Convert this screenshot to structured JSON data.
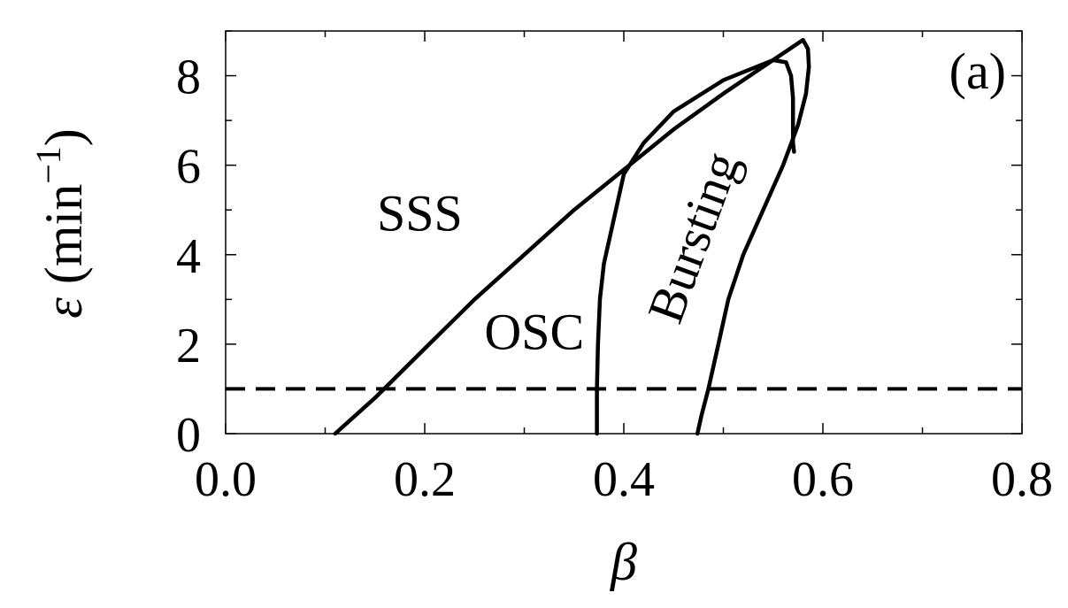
{
  "chart_data": {
    "type": "line",
    "xlabel": "β",
    "ylabel": {
      "symbol": "ε",
      "open": " (min",
      "exp": "−1",
      "close": ")"
    },
    "panel_label": "(a)",
    "xlim": [
      0.0,
      0.8
    ],
    "ylim": [
      0,
      9
    ],
    "xticks": [
      "0.0",
      "0.2",
      "0.4",
      "0.6",
      "0.8"
    ],
    "yticks": [
      "0",
      "2",
      "4",
      "6",
      "8"
    ],
    "grid": false,
    "region_labels": [
      {
        "text": "SSS",
        "x": 0.195,
        "y": 4.8,
        "rotate": 0
      },
      {
        "text": "OSC",
        "x": 0.31,
        "y": 2.15,
        "rotate": 0
      },
      {
        "text": "Bursting",
        "x": 0.475,
        "y": 4.35,
        "rotate": -70
      }
    ],
    "series": [
      {
        "style": "solid",
        "points": [
          [
            0.11,
            0.0
          ],
          [
            0.15,
            0.8
          ],
          [
            0.2,
            1.9
          ],
          [
            0.25,
            3.0
          ],
          [
            0.3,
            4.0
          ],
          [
            0.35,
            5.0
          ],
          [
            0.4,
            5.9
          ],
          [
            0.45,
            6.8
          ],
          [
            0.5,
            7.6
          ],
          [
            0.54,
            8.2
          ],
          [
            0.56,
            8.5
          ],
          [
            0.58,
            8.8
          ],
          [
            0.585,
            8.6
          ],
          [
            0.586,
            8.2
          ],
          [
            0.583,
            7.6
          ],
          [
            0.575,
            6.9
          ],
          [
            0.56,
            6.0
          ],
          [
            0.54,
            5.0
          ],
          [
            0.52,
            4.0
          ],
          [
            0.505,
            3.0
          ],
          [
            0.495,
            2.0
          ],
          [
            0.485,
            1.0
          ],
          [
            0.478,
            0.4
          ],
          [
            0.474,
            0.0
          ]
        ]
      },
      {
        "style": "solid",
        "points": [
          [
            0.373,
            0.0
          ],
          [
            0.373,
            1.0
          ],
          [
            0.374,
            2.0
          ],
          [
            0.376,
            3.0
          ],
          [
            0.38,
            3.8
          ],
          [
            0.39,
            4.8
          ],
          [
            0.4,
            5.8
          ],
          [
            0.42,
            6.5
          ],
          [
            0.45,
            7.2
          ],
          [
            0.5,
            7.9
          ],
          [
            0.55,
            8.35
          ],
          [
            0.563,
            8.3
          ],
          [
            0.568,
            8.0
          ],
          [
            0.57,
            7.5
          ],
          [
            0.57,
            7.0
          ],
          [
            0.57,
            6.5
          ],
          [
            0.571,
            6.3
          ]
        ]
      },
      {
        "style": "dashed",
        "points": [
          [
            0.0,
            1.0
          ],
          [
            0.8,
            1.0
          ]
        ]
      }
    ]
  }
}
